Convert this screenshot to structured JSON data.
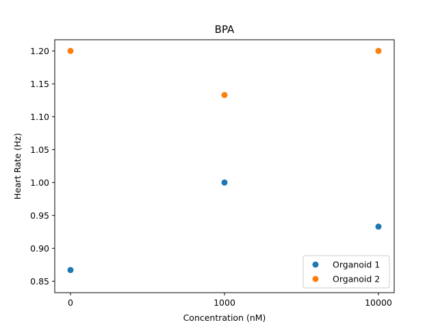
{
  "chart_data": {
    "type": "scatter",
    "title": "BPA",
    "xlabel": "Concentration (nM)",
    "ylabel": "Heart Rate (Hz)",
    "x_scale": "categorical",
    "categories": [
      "0",
      "1000",
      "10000"
    ],
    "ylim": [
      0.85,
      1.2
    ],
    "yticks": [
      "0.85",
      "0.90",
      "0.95",
      "1.00",
      "1.05",
      "1.10",
      "1.15",
      "1.20"
    ],
    "grid": false,
    "legend_position": "lower-right",
    "series": [
      {
        "name": "Organoid 1",
        "color": "#1f77b4",
        "values": [
          0.867,
          1.0,
          0.933
        ]
      },
      {
        "name": "Organoid 2",
        "color": "#ff7f0e",
        "values": [
          1.2,
          1.133,
          1.2
        ]
      }
    ]
  }
}
